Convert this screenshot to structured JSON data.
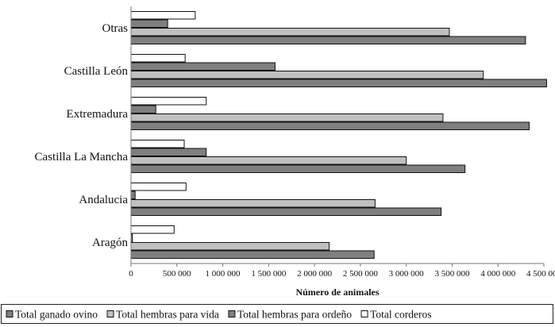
{
  "chart_data": {
    "type": "bar",
    "orientation": "horizontal",
    "title": "",
    "xlabel": "Número de animales",
    "ylabel": "",
    "categories": [
      "Aragón",
      "Andalucia",
      "Castilla La Mancha",
      "Extremadura",
      "Castilla León",
      "Otras"
    ],
    "x_ticks": [
      0,
      500000,
      1000000,
      1500000,
      2000000,
      2500000,
      3000000,
      3500000,
      4000000,
      4500000
    ],
    "x_tick_labels": [
      "0",
      "500 000",
      "1 000 000",
      "1 500 000",
      "2 000 000",
      "2 500 000",
      "3 000 000",
      "3 500 000",
      "4 000 000",
      "4 500 000"
    ],
    "xlim": [
      0,
      4500000
    ],
    "grid": false,
    "legend_position": "bottom",
    "series": [
      {
        "name": "Total ganado ovino",
        "color": "#7f7f7f",
        "values": [
          2650000,
          3380000,
          3640000,
          4340000,
          4530000,
          4300000
        ]
      },
      {
        "name": "Total hembras para vida",
        "color": "#c0c0c0",
        "values": [
          2160000,
          2660000,
          3000000,
          3400000,
          3840000,
          3470000
        ]
      },
      {
        "name": "Total hembras para ordeño",
        "color": "#7f7f7f",
        "values": [
          15000,
          45000,
          820000,
          270000,
          1570000,
          400000
        ]
      },
      {
        "name": "Total corderos",
        "color": "#ffffff",
        "values": [
          470000,
          600000,
          580000,
          820000,
          590000,
          700000
        ]
      }
    ]
  }
}
